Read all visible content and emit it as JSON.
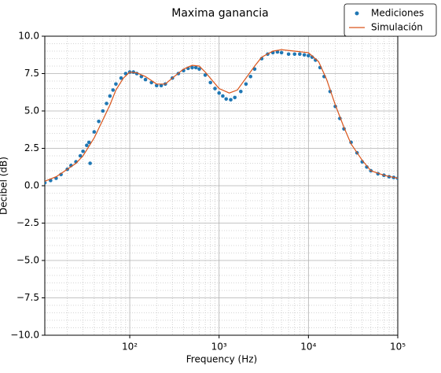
{
  "chart_data": {
    "type": "scatter_line",
    "title": "Maxima ganancia",
    "x_label": "Frequency (Hz)",
    "y_label": "Decibel (dB)",
    "xscale": "log",
    "xlim": [
      11.2,
      100000
    ],
    "ylim": [
      -10,
      10
    ],
    "xticks": [
      {
        "value": 100,
        "label": "10²"
      },
      {
        "value": 1000,
        "label": "10³"
      },
      {
        "value": 10000,
        "label": "10⁴"
      },
      {
        "value": 100000,
        "label": "10⁵"
      }
    ],
    "yticks": [
      {
        "value": -10,
        "label": "−10.0"
      },
      {
        "value": -7.5,
        "label": "−7.5"
      },
      {
        "value": -5,
        "label": "−5.0"
      },
      {
        "value": -2.5,
        "label": "−2.5"
      },
      {
        "value": 0,
        "label": "0.0"
      },
      {
        "value": 2.5,
        "label": "2.5"
      },
      {
        "value": 5,
        "label": "5.0"
      },
      {
        "value": 7.5,
        "label": "7.5"
      },
      {
        "value": 10,
        "label": "10.0"
      }
    ],
    "grid": true,
    "minor_grid": true,
    "legend": "upper right",
    "series": [
      {
        "name": "Mediciones",
        "style": "points",
        "color": "#1f77b4",
        "x": [
          11.2,
          13,
          15,
          17,
          20,
          22,
          25,
          28,
          30,
          33,
          35,
          36,
          40,
          45,
          50,
          55,
          60,
          65,
          70,
          80,
          90,
          100,
          110,
          120,
          135,
          150,
          175,
          200,
          225,
          250,
          300,
          350,
          400,
          450,
          500,
          550,
          600,
          700,
          800,
          900,
          1000,
          1100,
          1200,
          1350,
          1500,
          1750,
          2000,
          2250,
          2500,
          3000,
          3500,
          4000,
          4500,
          5000,
          6000,
          7000,
          8000,
          9000,
          10000,
          11000,
          12000,
          13500,
          15000,
          17500,
          20000,
          22500,
          25000,
          30000,
          35000,
          40000,
          45000,
          50000,
          60000,
          70000,
          80000,
          90000,
          100000
        ],
        "values": [
          0.2,
          0.35,
          0.5,
          0.75,
          1.1,
          1.35,
          1.6,
          2.0,
          2.3,
          2.7,
          2.9,
          1.5,
          3.6,
          4.3,
          5.0,
          5.5,
          6.0,
          6.4,
          6.8,
          7.2,
          7.5,
          7.6,
          7.6,
          7.5,
          7.3,
          7.1,
          6.9,
          6.7,
          6.7,
          6.8,
          7.2,
          7.5,
          7.7,
          7.85,
          7.9,
          7.9,
          7.8,
          7.4,
          6.9,
          6.5,
          6.2,
          6.0,
          5.8,
          5.75,
          5.9,
          6.3,
          6.8,
          7.3,
          7.8,
          8.5,
          8.8,
          8.9,
          8.95,
          8.9,
          8.8,
          8.8,
          8.8,
          8.75,
          8.7,
          8.6,
          8.4,
          7.9,
          7.3,
          6.3,
          5.3,
          4.5,
          3.8,
          2.9,
          2.2,
          1.6,
          1.25,
          1.0,
          0.8,
          0.7,
          0.6,
          0.55,
          0.5
        ]
      },
      {
        "name": "Simulación",
        "style": "line",
        "color": "#d9541a",
        "x": [
          11.2,
          15,
          20,
          25,
          30,
          40,
          50,
          60,
          70,
          85,
          100,
          120,
          150,
          200,
          250,
          300,
          400,
          500,
          600,
          700,
          850,
          1000,
          1300,
          1600,
          2000,
          2500,
          3000,
          4000,
          5000,
          7000,
          10000,
          13000,
          16000,
          20000,
          25000,
          30000,
          40000,
          50000,
          70000,
          100000
        ],
        "values": [
          0.3,
          0.6,
          1.1,
          1.5,
          2.0,
          3.2,
          4.4,
          5.4,
          6.4,
          7.2,
          7.6,
          7.55,
          7.3,
          6.8,
          6.8,
          7.2,
          7.8,
          8.05,
          8.0,
          7.6,
          7.0,
          6.5,
          6.2,
          6.4,
          7.2,
          8.0,
          8.6,
          9.0,
          9.1,
          9.0,
          8.9,
          8.3,
          7.1,
          5.4,
          3.9,
          2.8,
          1.7,
          1.0,
          0.7,
          0.5
        ]
      }
    ]
  }
}
